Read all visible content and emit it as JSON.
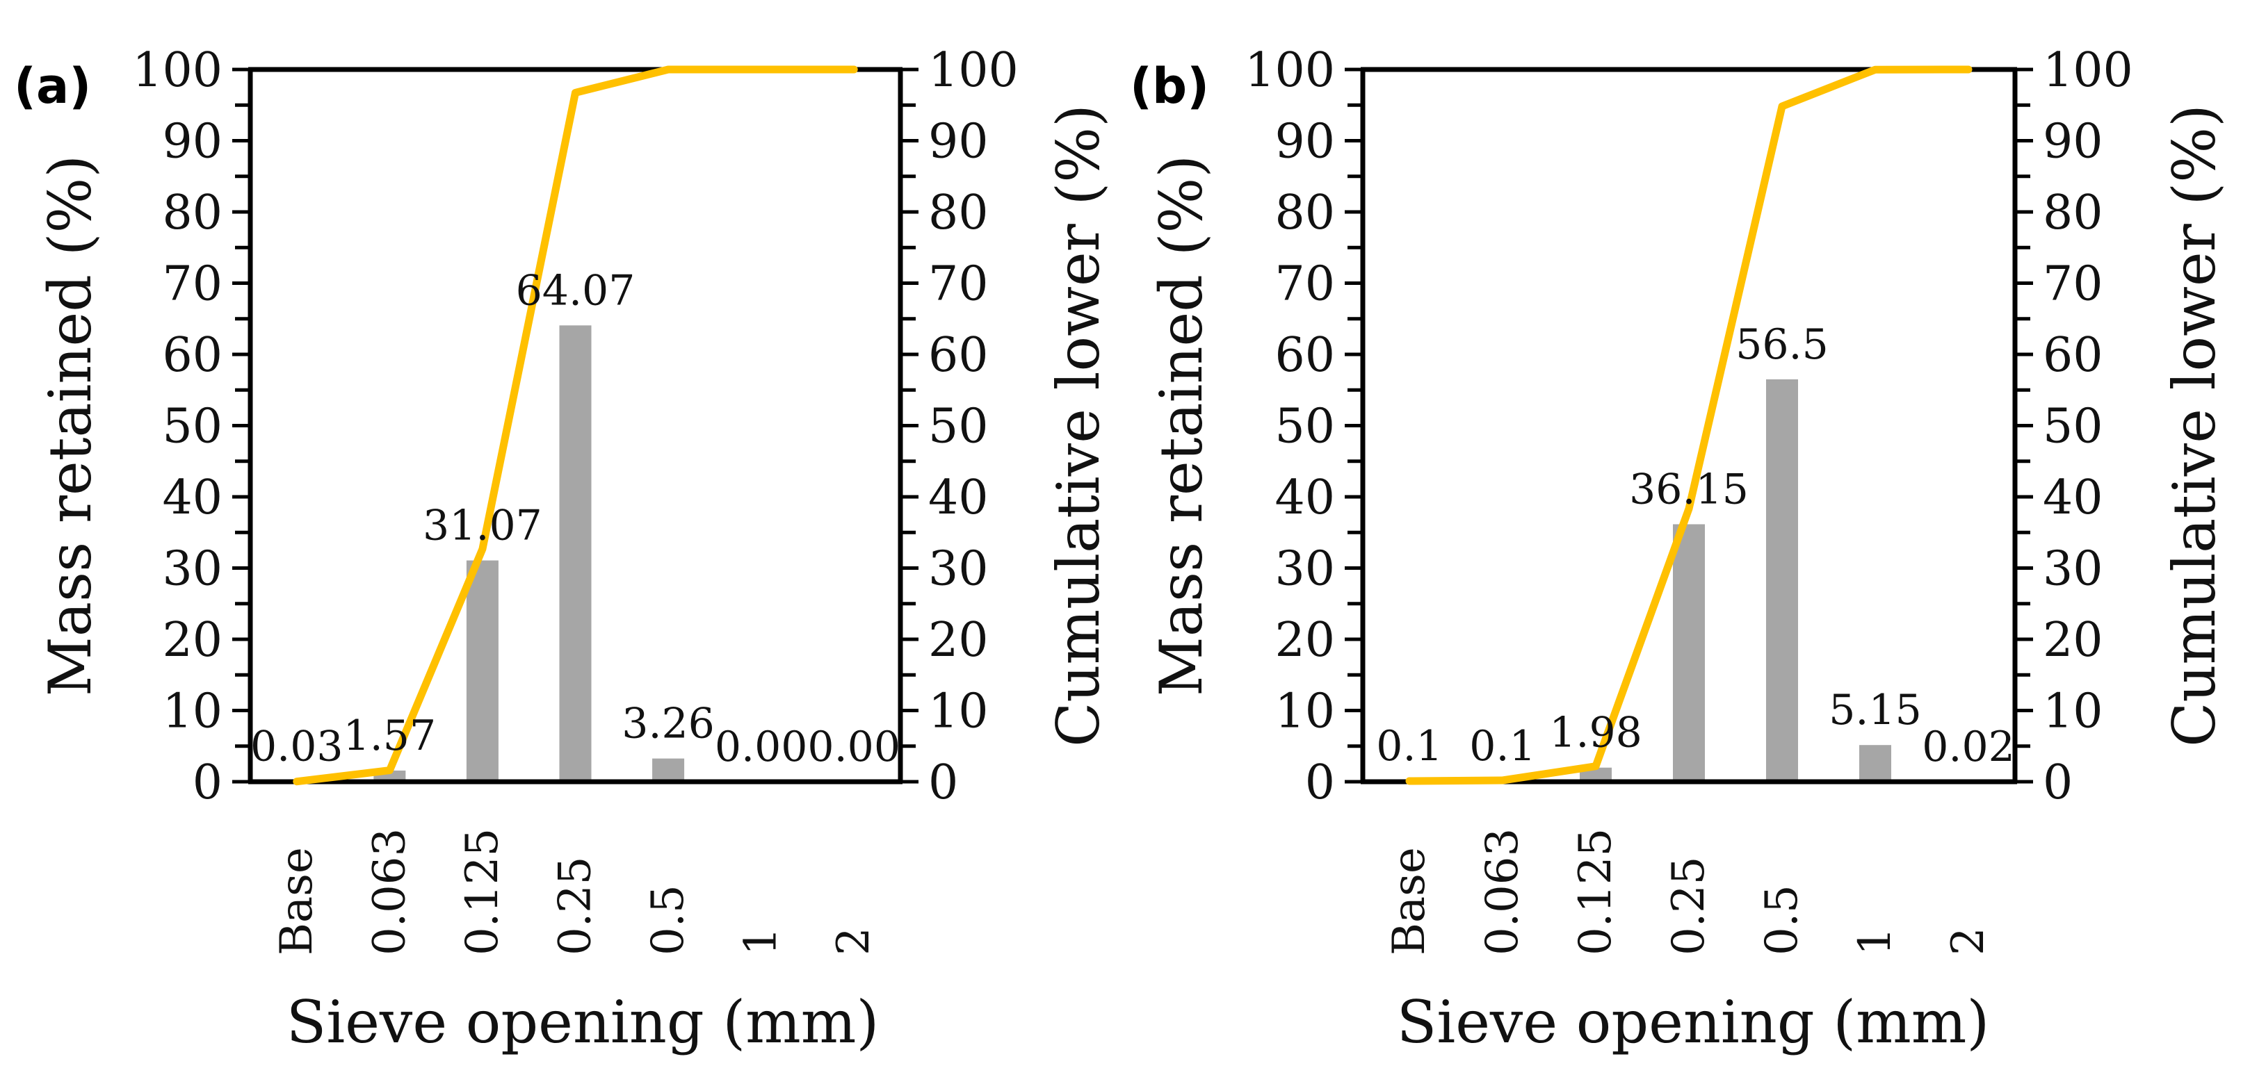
{
  "colors": {
    "bar": "#a6a6a6",
    "line": "#ffc000",
    "axis": "#000000",
    "text": "#111111"
  },
  "chart_data": [
    {
      "type": "bar",
      "panel_label": "(a)",
      "categories": [
        "Base",
        "0.063",
        "0.125",
        "0.25",
        "0.5",
        "1",
        "2"
      ],
      "series": [
        {
          "name": "Mass retained (%)",
          "type": "bar",
          "axis": "left",
          "values": [
            0.03,
            1.57,
            31.07,
            64.07,
            3.26,
            0.0,
            0.0
          ],
          "labels": [
            "0.03",
            "1.57",
            "31.07",
            "64.07",
            "3.26",
            "0.00",
            "0.00"
          ]
        },
        {
          "name": "Cumulative lower (%)",
          "type": "line",
          "axis": "right",
          "values": [
            0.03,
            1.6,
            32.67,
            96.74,
            100,
            100,
            100
          ]
        }
      ],
      "xlabel": "Sieve opening (mm)",
      "ylabel": "Mass retained (%)",
      "y2label": "Cumulative lower (%)",
      "ylim": [
        0,
        100
      ],
      "y2lim": [
        0,
        100
      ],
      "yticks": [
        "0",
        "10",
        "20",
        "30",
        "40",
        "50",
        "60",
        "70",
        "80",
        "90",
        "100"
      ],
      "grid": false
    },
    {
      "type": "bar",
      "panel_label": "(b)",
      "categories": [
        "Base",
        "0.063",
        "0.125",
        "0.25",
        "0.5",
        "1",
        "2"
      ],
      "series": [
        {
          "name": "Mass retained (%)",
          "type": "bar",
          "axis": "left",
          "values": [
            0.1,
            0.1,
            1.98,
            36.15,
            56.5,
            5.15,
            0.02
          ],
          "labels": [
            "0.1",
            "0.1",
            "1.98",
            "36.15",
            "56.5",
            "5.15",
            "0.02"
          ]
        },
        {
          "name": "Cumulative lower (%)",
          "type": "line",
          "axis": "right",
          "values": [
            0.1,
            0.2,
            2.18,
            38.33,
            94.83,
            99.98,
            100
          ]
        }
      ],
      "xlabel": "Sieve opening (mm)",
      "ylabel": "Mass retained (%)",
      "y2label": "Cumulative lower (%)",
      "ylim": [
        0,
        100
      ],
      "y2lim": [
        0,
        100
      ],
      "yticks": [
        "0",
        "10",
        "20",
        "30",
        "40",
        "50",
        "60",
        "70",
        "80",
        "90",
        "100"
      ],
      "grid": false
    }
  ]
}
